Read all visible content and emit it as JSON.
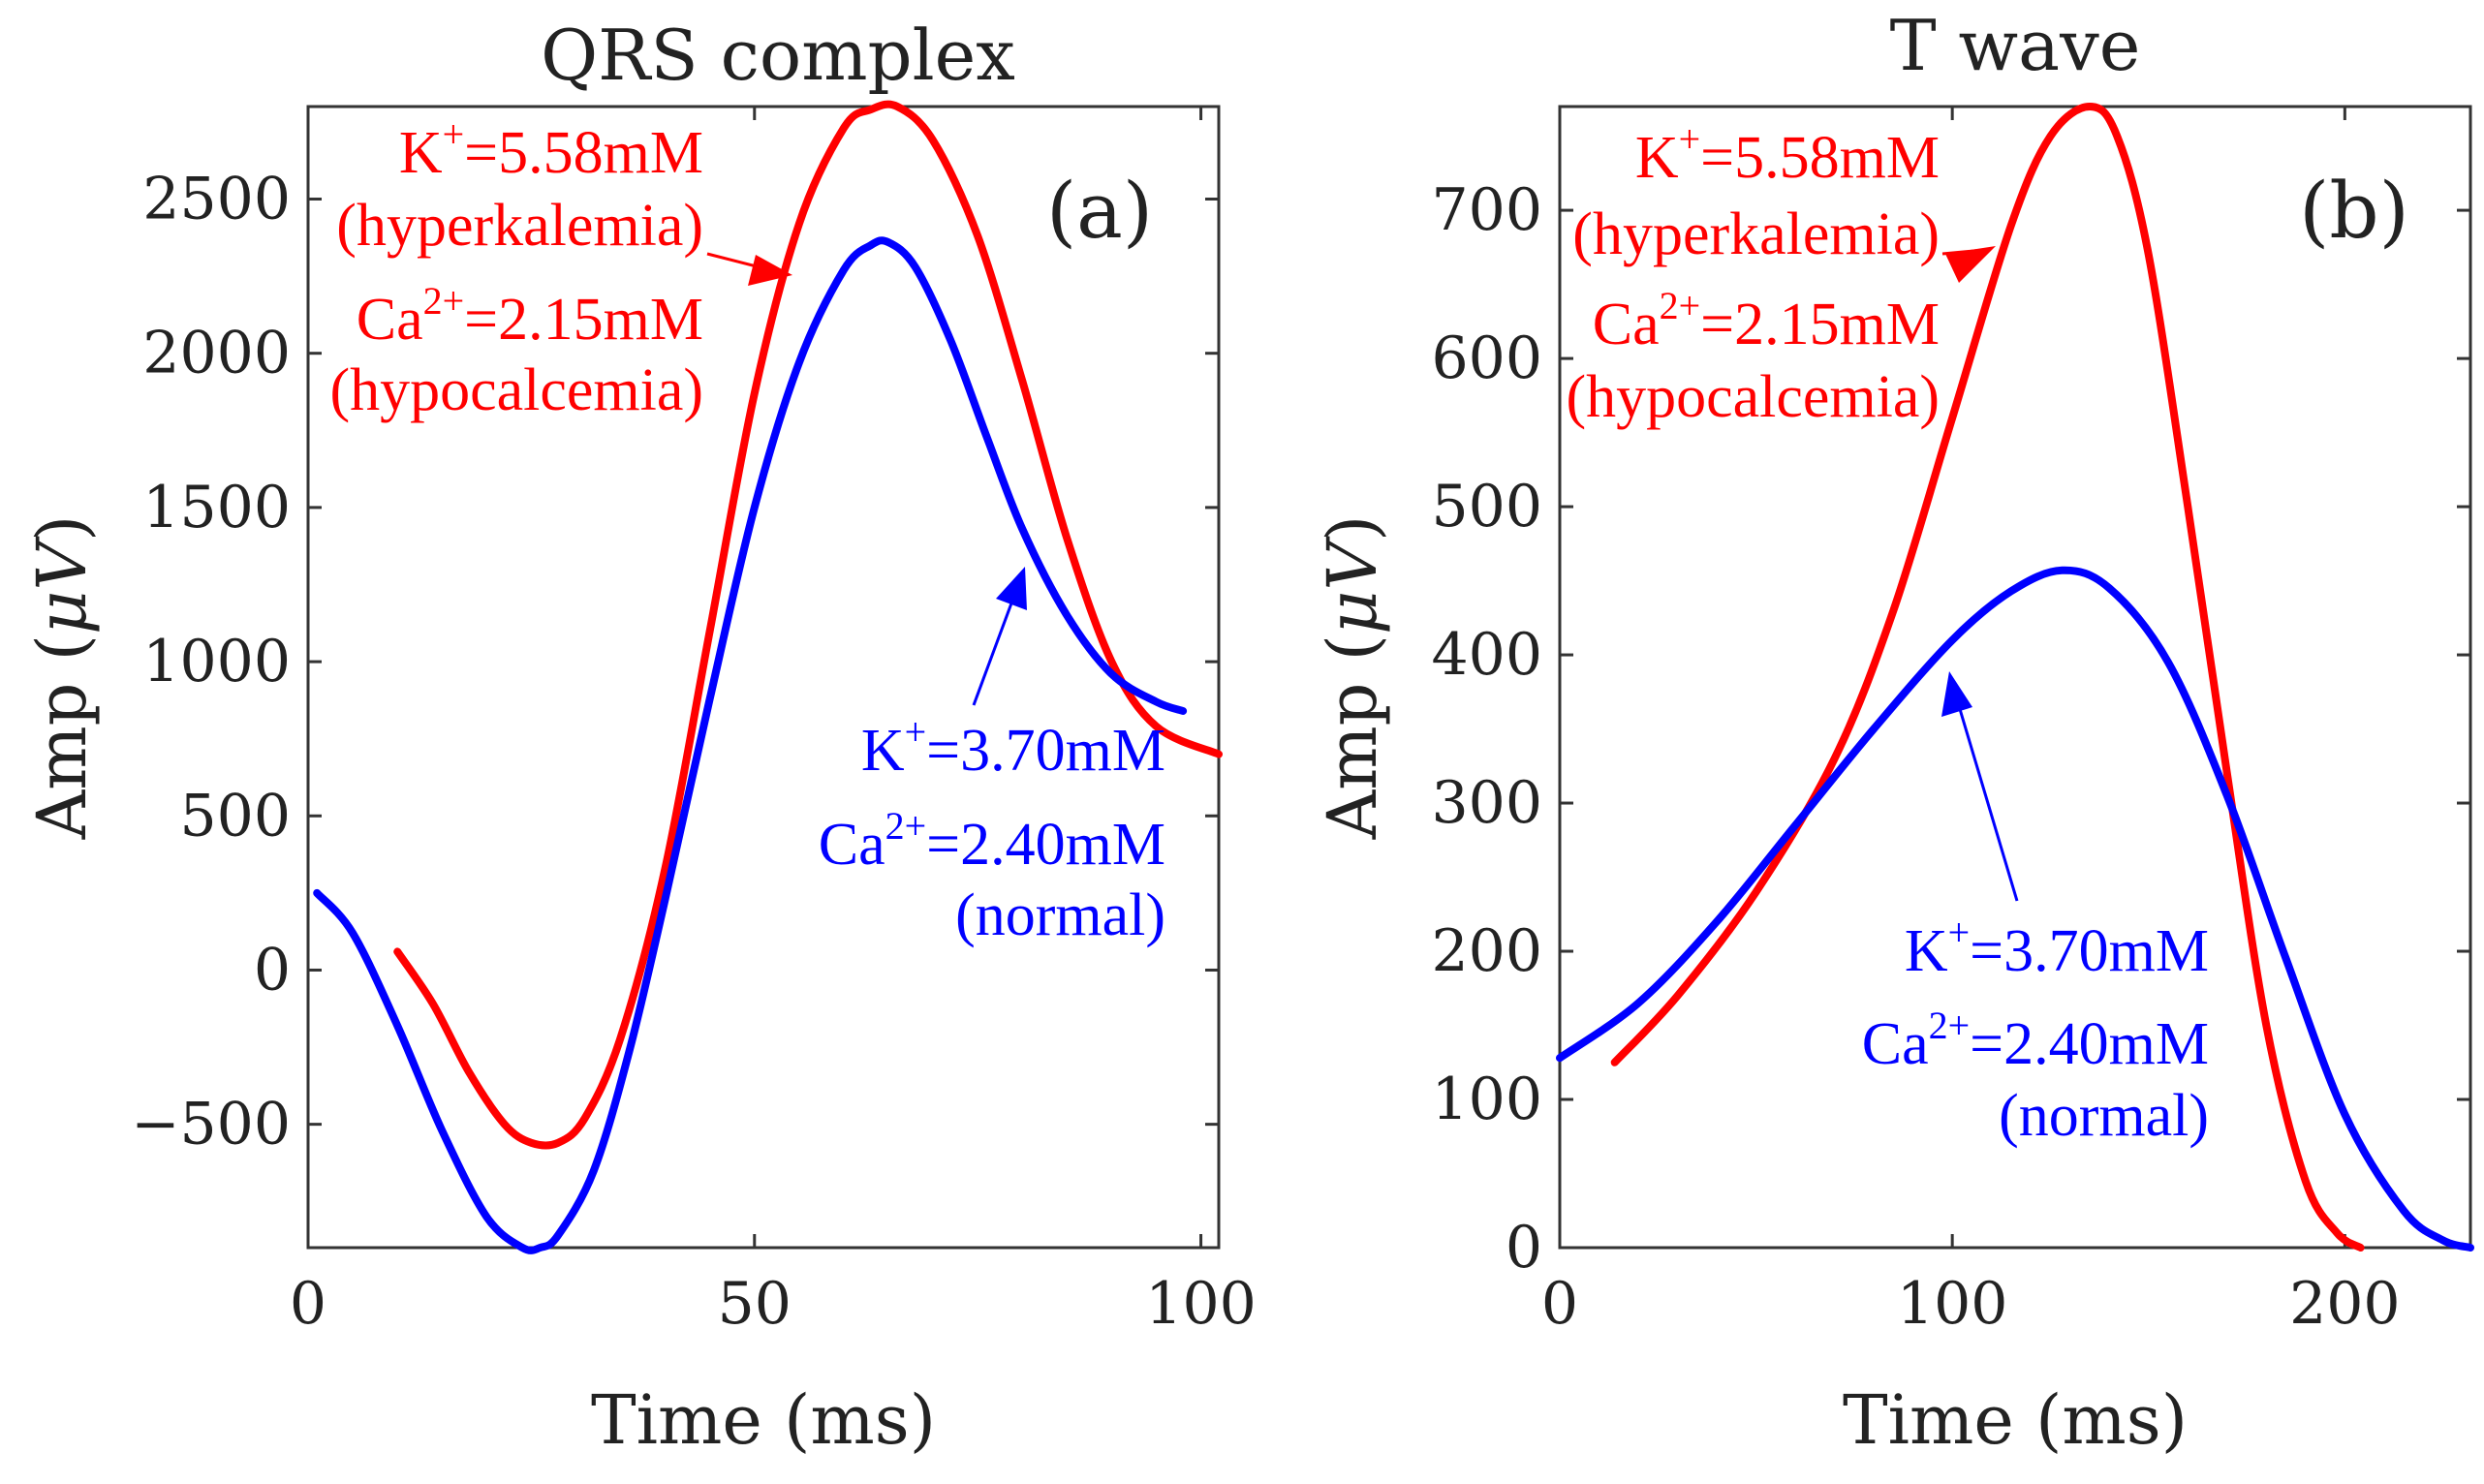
{
  "chart_data": [
    {
      "type": "line",
      "title": "QRS complex",
      "panel_label": "(a)",
      "xlabel": "Time (ms)",
      "ylabel_main": "Amp (",
      "ylabel_symbol": "μV",
      "ylabel_close": ")",
      "xlim": [
        0,
        102
      ],
      "ylim": [
        -900,
        2800
      ],
      "xticks": [
        0,
        50,
        100
      ],
      "xtick_labels": [
        "0",
        "50",
        "100"
      ],
      "yticks": [
        -500,
        0,
        500,
        1000,
        1500,
        2000,
        2500
      ],
      "ytick_labels": [
        "−500",
        "0",
        "500",
        "1000",
        "1500",
        "2000",
        "2500"
      ],
      "series": [
        {
          "name": "hyperkalemia / hypocalcemia",
          "color": "#ff0000",
          "x": [
            10,
            14,
            18,
            22,
            25,
            28,
            31,
            35,
            40,
            45,
            50,
            55,
            60,
            63,
            66,
            70,
            75,
            80,
            85,
            90,
            95,
            102
          ],
          "y": [
            60,
            -110,
            -330,
            -500,
            -560,
            -560,
            -480,
            -220,
            330,
            1100,
            1870,
            2420,
            2730,
            2790,
            2800,
            2690,
            2380,
            1910,
            1400,
            1000,
            790,
            700
          ]
        },
        {
          "name": "normal",
          "color": "#0000ff",
          "x": [
            1,
            5,
            10,
            15,
            20,
            24,
            26,
            28,
            32,
            36,
            40,
            45,
            50,
            55,
            60,
            63,
            65,
            68,
            72,
            76,
            80,
            85,
            90,
            95,
            98
          ],
          "y": [
            250,
            120,
            -180,
            -520,
            -800,
            -900,
            -900,
            -860,
            -650,
            -260,
            230,
            880,
            1500,
            1970,
            2270,
            2350,
            2360,
            2280,
            2040,
            1730,
            1430,
            1150,
            960,
            870,
            840
          ]
        }
      ],
      "annotations": [
        {
          "color": "#ff0000",
          "lines": [
            {
              "pre": "K",
              "sup": "+",
              "post": "=5.58mM"
            },
            {
              "pre": "(hyperkalemia)",
              "sup": "",
              "post": ""
            },
            {
              "pre": "Ca",
              "sup": "2+",
              "post": "=2.15mM"
            },
            {
              "pre": "(hypocalcemia)",
              "sup": "",
              "post": ""
            }
          ]
        },
        {
          "color": "#0000ff",
          "lines": [
            {
              "pre": "K",
              "sup": "+",
              "post": "=3.70mM"
            },
            {
              "pre": "Ca",
              "sup": "2+",
              "post": "=2.40mM"
            },
            {
              "pre": "(normal)",
              "sup": "",
              "post": ""
            }
          ]
        }
      ]
    },
    {
      "type": "line",
      "title": "T wave",
      "panel_label": "(b)",
      "xlabel": "Time (ms)",
      "ylabel_main": "Amp (",
      "ylabel_symbol": "μV",
      "ylabel_close": ")",
      "xlim": [
        0,
        232
      ],
      "ylim": [
        0,
        770
      ],
      "xticks": [
        0,
        100,
        200
      ],
      "xtick_labels": [
        "0",
        "100",
        "200"
      ],
      "yticks": [
        0,
        100,
        200,
        300,
        400,
        500,
        600,
        700
      ],
      "ytick_labels": [
        "0",
        "100",
        "200",
        "300",
        "400",
        "500",
        "600",
        "700"
      ],
      "series": [
        {
          "name": "hyperkalemia / hypocalcemia",
          "color": "#ff0000",
          "x": [
            14,
            30,
            50,
            70,
            85,
            100,
            115,
            125,
            135,
            142,
            150,
            160,
            170,
            180,
            190,
            198,
            204
          ],
          "y": [
            125,
            170,
            240,
            330,
            430,
            560,
            690,
            750,
            770,
            750,
            670,
            500,
            320,
            150,
            45,
            10,
            0
          ]
        },
        {
          "name": "normal",
          "color": "#0000ff",
          "x": [
            0,
            20,
            40,
            60,
            80,
            100,
            115,
            128,
            140,
            155,
            170,
            185,
            200,
            215,
            225,
            232
          ],
          "y": [
            128,
            165,
            220,
            285,
            350,
            410,
            443,
            457,
            445,
            395,
            305,
            195,
            90,
            25,
            5,
            0
          ]
        }
      ],
      "annotations": [
        {
          "color": "#ff0000",
          "lines": [
            {
              "pre": "K",
              "sup": "+",
              "post": "=5.58mM"
            },
            {
              "pre": "(hyperkalemia)",
              "sup": "",
              "post": ""
            },
            {
              "pre": "Ca",
              "sup": "2+",
              "post": "=2.15mM"
            },
            {
              "pre": "(hypocalcemia)",
              "sup": "",
              "post": ""
            }
          ]
        },
        {
          "color": "#0000ff",
          "lines": [
            {
              "pre": "K",
              "sup": "+",
              "post": "=3.70mM"
            },
            {
              "pre": "Ca",
              "sup": "2+",
              "post": "=2.40mM"
            },
            {
              "pre": "(normal)",
              "sup": "",
              "post": ""
            }
          ]
        }
      ]
    }
  ]
}
